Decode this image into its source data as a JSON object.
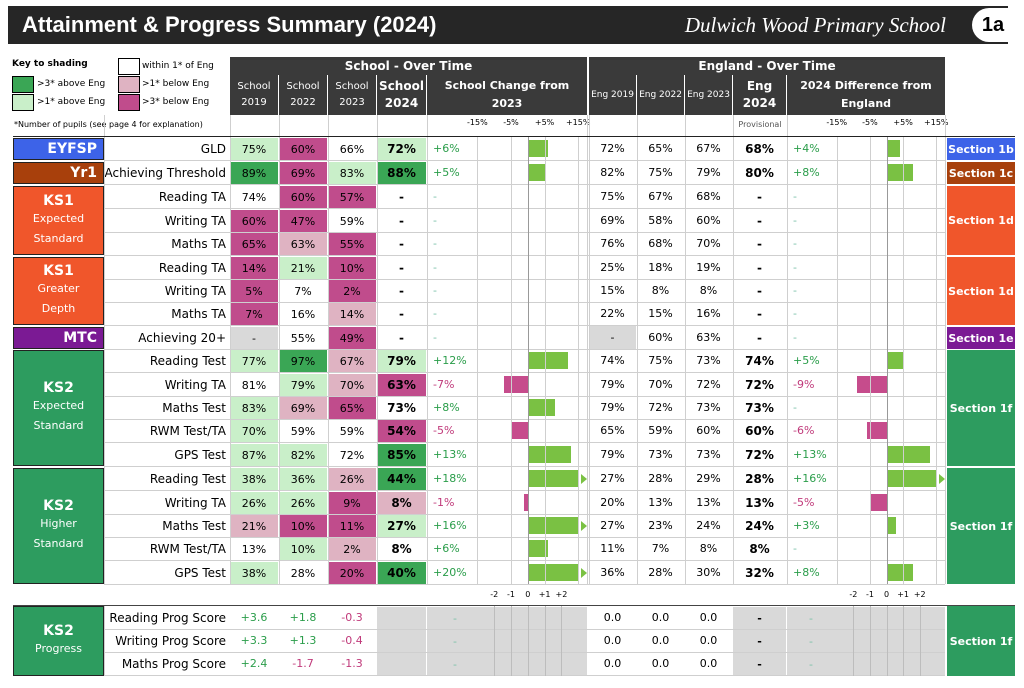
{
  "header": {
    "title": "Attainment & Progress Summary (2024)",
    "school": "Dulwich Wood Primary School",
    "page": "1a"
  },
  "key": {
    "title": "Key to shading",
    "within": "within 1* of Eng",
    "above3": ">3* above Eng",
    "above1": ">1* above Eng",
    "below1": ">1* below Eng",
    "below3": ">3* below Eng",
    "footnote": "*Number of pupils (see page 4 for explanation)"
  },
  "colors": {
    "g3": "#3aa655",
    "g1": "#c9efc9",
    "p1": "#dfb3c2",
    "p3": "#c04c8c",
    "grey": "#d9d9d9",
    "barGreen": "#7ac143",
    "barPink": "#c64c8c"
  },
  "school_over_time": {
    "title": "School - Over Time",
    "cols": [
      "School\n2019",
      "School\n2022",
      "School\n2023",
      "School\n2024"
    ],
    "change_title": "School Change from 2023",
    "scale": [
      "-15%",
      "-5%",
      "+5%",
      "+15%"
    ],
    "progress_scale": [
      "-2",
      "-1",
      "0",
      "+1",
      "+2"
    ]
  },
  "england_over_time": {
    "title": "England - Over Time",
    "cols": [
      "Eng 2019",
      "Eng 2022",
      "Eng 2023",
      "Eng\n2024"
    ],
    "provisional": "Provisional",
    "diff_title": "2024 Difference from England",
    "scale": [
      "-15%",
      "-5%",
      "+5%",
      "+15%"
    ],
    "progress_scale": [
      "-2",
      "-1",
      "0",
      "+1",
      "+2"
    ]
  },
  "groups": [
    {
      "name": "EYFSP",
      "sub": [],
      "color": "#3d63e8",
      "section": "Section 1b",
      "secColor": "#3d63e8"
    },
    {
      "name": "Yr1",
      "sub": [],
      "color": "#a8400c",
      "section": "Section 1c",
      "secColor": "#a8400c"
    },
    {
      "name": "KS1",
      "sub": [
        "Expected",
        "Standard"
      ],
      "color": "#f0562b",
      "section": "Section 1d",
      "secColor": "#f0562b"
    },
    {
      "name": "KS1",
      "sub": [
        "Greater",
        "Depth"
      ],
      "color": "#f0562b",
      "section": "Section 1d",
      "secColor": "#f0562b"
    },
    {
      "name": "MTC",
      "sub": [],
      "color": "#7b1a94",
      "section": "Section 1e",
      "secColor": "#7b1a94"
    },
    {
      "name": "KS2",
      "sub": [
        "Expected",
        "Standard"
      ],
      "color": "#2d9c5f",
      "section": "Section 1f",
      "secColor": "#2d9c5f"
    },
    {
      "name": "KS2",
      "sub": [
        "Higher",
        "Standard"
      ],
      "color": "#2d9c5f",
      "section": "Section 1f",
      "secColor": "#2d9c5f"
    },
    {
      "name": "KS2",
      "sub": [
        "Progress"
      ],
      "color": "#2d9c5f",
      "section": "Section 1f",
      "secColor": "#2d9c5f"
    }
  ],
  "rows": [
    {
      "label": "GLD",
      "s": [
        "75%",
        "60%",
        "66%",
        "72%"
      ],
      "sc": [
        "g1",
        "p3",
        "w",
        "g1"
      ],
      "chg": "+6%",
      "chgv": 6,
      "e": [
        "72%",
        "65%",
        "67%",
        "68%"
      ],
      "diff": "+4%",
      "diffv": 4
    },
    {
      "label": "Achieving Threshold",
      "s": [
        "89%",
        "69%",
        "83%",
        "88%"
      ],
      "sc": [
        "g3",
        "p3",
        "g1",
        "g3"
      ],
      "chg": "+5%",
      "chgv": 5,
      "e": [
        "82%",
        "75%",
        "79%",
        "80%"
      ],
      "diff": "+8%",
      "diffv": 8
    },
    {
      "label": "Reading TA",
      "s": [
        "74%",
        "60%",
        "57%",
        "-"
      ],
      "sc": [
        "w",
        "p3",
        "p3",
        "w"
      ],
      "chg": "-",
      "chgv": 0,
      "e": [
        "75%",
        "67%",
        "68%",
        "-"
      ],
      "diff": "-",
      "diffv": 0
    },
    {
      "label": "Writing TA",
      "s": [
        "60%",
        "47%",
        "59%",
        "-"
      ],
      "sc": [
        "p3",
        "p3",
        "w",
        "w"
      ],
      "chg": "-",
      "chgv": 0,
      "e": [
        "69%",
        "58%",
        "60%",
        "-"
      ],
      "diff": "-",
      "diffv": 0
    },
    {
      "label": "Maths TA",
      "s": [
        "65%",
        "63%",
        "55%",
        "-"
      ],
      "sc": [
        "p3",
        "p1",
        "p3",
        "w"
      ],
      "chg": "-",
      "chgv": 0,
      "e": [
        "76%",
        "68%",
        "70%",
        "-"
      ],
      "diff": "-",
      "diffv": 0
    },
    {
      "label": "Reading TA",
      "s": [
        "14%",
        "21%",
        "10%",
        "-"
      ],
      "sc": [
        "p3",
        "g1",
        "p3",
        "w"
      ],
      "chg": "-",
      "chgv": 0,
      "e": [
        "25%",
        "18%",
        "19%",
        "-"
      ],
      "diff": "-",
      "diffv": 0
    },
    {
      "label": "Writing TA",
      "s": [
        "5%",
        "7%",
        "2%",
        "-"
      ],
      "sc": [
        "p3",
        "w",
        "p3",
        "w"
      ],
      "chg": "-",
      "chgv": 0,
      "e": [
        "15%",
        "8%",
        "8%",
        "-"
      ],
      "diff": "-",
      "diffv": 0
    },
    {
      "label": "Maths TA",
      "s": [
        "7%",
        "16%",
        "14%",
        "-"
      ],
      "sc": [
        "p3",
        "w",
        "p1",
        "w"
      ],
      "chg": "-",
      "chgv": 0,
      "e": [
        "22%",
        "15%",
        "16%",
        "-"
      ],
      "diff": "-",
      "diffv": 0
    },
    {
      "label": "Achieving 20+",
      "s": [
        "-",
        "55%",
        "49%",
        "-"
      ],
      "sc": [
        "grey",
        "w",
        "p3",
        "w"
      ],
      "chg": "-",
      "chgv": 0,
      "e": [
        "-",
        "60%",
        "63%",
        "-"
      ],
      "egrey": true,
      "diff": "-",
      "diffv": 0
    },
    {
      "label": "Reading Test",
      "s": [
        "77%",
        "97%",
        "67%",
        "79%"
      ],
      "sc": [
        "g1",
        "g3",
        "p1",
        "g1"
      ],
      "chg": "+12%",
      "chgv": 12,
      "e": [
        "74%",
        "75%",
        "73%",
        "74%"
      ],
      "diff": "+5%",
      "diffv": 5
    },
    {
      "label": "Writing TA",
      "s": [
        "81%",
        "79%",
        "70%",
        "63%"
      ],
      "sc": [
        "w",
        "g1",
        "p1",
        "p3"
      ],
      "chg": "-7%",
      "chgv": -7,
      "e": [
        "79%",
        "70%",
        "72%",
        "72%"
      ],
      "diff": "-9%",
      "diffv": -9
    },
    {
      "label": "Maths Test",
      "s": [
        "83%",
        "69%",
        "65%",
        "73%"
      ],
      "sc": [
        "g1",
        "p1",
        "p3",
        "w"
      ],
      "chg": "+8%",
      "chgv": 8,
      "e": [
        "79%",
        "72%",
        "73%",
        "73%"
      ],
      "diff": "-",
      "diffv": 0
    },
    {
      "label": "RWM Test/TA",
      "s": [
        "70%",
        "59%",
        "59%",
        "54%"
      ],
      "sc": [
        "g1",
        "w",
        "w",
        "p3"
      ],
      "chg": "-5%",
      "chgv": -5,
      "e": [
        "65%",
        "59%",
        "60%",
        "60%"
      ],
      "diff": "-6%",
      "diffv": -6
    },
    {
      "label": "GPS Test",
      "s": [
        "87%",
        "82%",
        "72%",
        "85%"
      ],
      "sc": [
        "g1",
        "g1",
        "w",
        "g3"
      ],
      "chg": "+13%",
      "chgv": 13,
      "e": [
        "79%",
        "73%",
        "73%",
        "72%"
      ],
      "diff": "+13%",
      "diffv": 13
    },
    {
      "label": "Reading Test",
      "s": [
        "38%",
        "36%",
        "26%",
        "44%"
      ],
      "sc": [
        "g1",
        "g1",
        "p1",
        "g3"
      ],
      "chg": "+18%",
      "chgv": 18,
      "e": [
        "27%",
        "28%",
        "29%",
        "28%"
      ],
      "diff": "+16%",
      "diffv": 16
    },
    {
      "label": "Writing TA",
      "s": [
        "26%",
        "26%",
        "9%",
        "8%"
      ],
      "sc": [
        "g1",
        "g1",
        "p3",
        "p1"
      ],
      "chg": "-1%",
      "chgv": -1,
      "e": [
        "20%",
        "13%",
        "13%",
        "13%"
      ],
      "diff": "-5%",
      "diffv": -5
    },
    {
      "label": "Maths Test",
      "s": [
        "21%",
        "10%",
        "11%",
        "27%"
      ],
      "sc": [
        "p1",
        "p3",
        "p3",
        "g1"
      ],
      "chg": "+16%",
      "chgv": 16,
      "e": [
        "27%",
        "23%",
        "24%",
        "24%"
      ],
      "diff": "+3%",
      "diffv": 3
    },
    {
      "label": "RWM Test/TA",
      "s": [
        "13%",
        "10%",
        "2%",
        "8%"
      ],
      "sc": [
        "w",
        "g1",
        "p1",
        "w"
      ],
      "chg": "+6%",
      "chgv": 6,
      "e": [
        "11%",
        "7%",
        "8%",
        "8%"
      ],
      "diff": "-",
      "diffv": 0
    },
    {
      "label": "GPS Test",
      "s": [
        "38%",
        "28%",
        "20%",
        "40%"
      ],
      "sc": [
        "g1",
        "w",
        "p3",
        "g3"
      ],
      "chg": "+20%",
      "chgv": 20,
      "e": [
        "36%",
        "28%",
        "30%",
        "32%"
      ],
      "diff": "+8%",
      "diffv": 8
    }
  ],
  "progress_rows": [
    {
      "label": "Reading Prog Score",
      "s": [
        "+3.6",
        "+1.8",
        "-0.3"
      ],
      "e": [
        "0.0",
        "0.0",
        "0.0"
      ]
    },
    {
      "label": "Writing Prog Score",
      "s": [
        "+3.3",
        "+1.3",
        "-0.4"
      ],
      "e": [
        "0.0",
        "0.0",
        "0.0"
      ]
    },
    {
      "label": "Maths Prog Score",
      "s": [
        "+2.4",
        "-1.7",
        "-1.3"
      ],
      "e": [
        "0.0",
        "0.0",
        "0.0"
      ]
    }
  ],
  "dash": "-"
}
